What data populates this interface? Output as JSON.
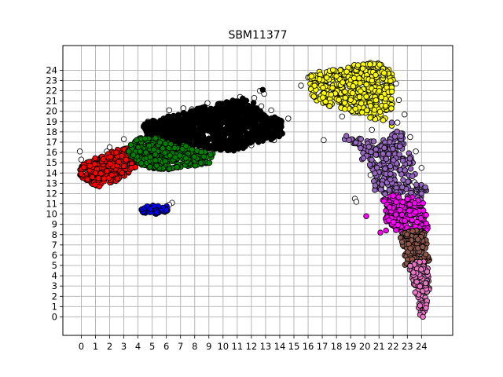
{
  "chart_data": {
    "type": "scatter",
    "title": "SBM11377",
    "xlabel": "",
    "ylabel": "",
    "xlim": [
      -1.3,
      26.2
    ],
    "ylim": [
      -1.8,
      26.4
    ],
    "xticks": [
      0,
      1,
      2,
      3,
      4,
      5,
      6,
      7,
      8,
      9,
      10,
      11,
      12,
      13,
      14,
      15,
      16,
      17,
      18,
      19,
      20,
      21,
      22,
      23,
      24
    ],
    "yticks": [
      0,
      1,
      2,
      3,
      4,
      5,
      6,
      7,
      8,
      9,
      10,
      11,
      12,
      13,
      14,
      15,
      16,
      17,
      18,
      19,
      20,
      21,
      22,
      23,
      24
    ],
    "grid": true,
    "legend": "none",
    "marker_edge_color": "#000000",
    "clusters": [
      {
        "color": "#ffffff",
        "points": [
          [
            -0.1,
            16.1
          ],
          [
            4.7,
            19
          ],
          [
            6.2,
            20.1
          ],
          [
            7.2,
            20.3
          ],
          [
            7.8,
            20.2
          ],
          [
            8.9,
            20.8
          ],
          [
            11.2,
            21.4
          ],
          [
            12.2,
            21.3
          ],
          [
            12.6,
            22
          ],
          [
            12.9,
            21.7
          ],
          [
            12.7,
            20.5
          ],
          [
            13.4,
            20.1
          ],
          [
            14.1,
            18.8
          ],
          [
            14.6,
            19.3
          ],
          [
            13.6,
            17.2
          ],
          [
            13.2,
            17.8
          ],
          [
            12,
            16.7
          ],
          [
            2,
            16.5
          ],
          [
            3,
            17.3
          ],
          [
            15.5,
            22.5
          ],
          [
            16,
            23.3
          ],
          [
            16.3,
            22.1
          ],
          [
            16.4,
            21.6
          ],
          [
            16.8,
            22.4
          ],
          [
            17.1,
            17.2
          ],
          [
            19,
            24.1
          ],
          [
            20.5,
            18.2
          ],
          [
            22.2,
            22.7
          ],
          [
            22.4,
            21.1
          ],
          [
            22.8,
            19.7
          ],
          [
            23.2,
            17.5
          ],
          [
            23.6,
            16.1
          ],
          [
            24,
            14.5
          ],
          [
            23.5,
            13.1
          ],
          [
            23.2,
            9.1
          ],
          [
            19.3,
            11.5
          ],
          [
            19.4,
            11.2
          ],
          [
            20.4,
            13.8
          ],
          [
            21.6,
            22.8
          ],
          [
            6.4,
            11.1
          ],
          [
            6.2,
            10.9
          ],
          [
            5.6,
            10.3
          ],
          [
            4.3,
            10.3
          ],
          [
            0,
            15.3
          ],
          [
            1.8,
            16.1
          ],
          [
            18.7,
            20.5
          ],
          [
            18.4,
            19.5
          ],
          [
            21,
            16.2
          ],
          [
            22.3,
            18.9
          ]
        ]
      },
      {
        "color": "#000000",
        "regions": [
          {
            "poly": [
              [
                4.3,
                18.8
              ],
              [
                6,
                19.5
              ],
              [
                7.5,
                20
              ],
              [
                9,
                20.6
              ],
              [
                10.5,
                21
              ],
              [
                11.5,
                21.3
              ],
              [
                12.3,
                20.8
              ],
              [
                12.4,
                20.3
              ],
              [
                13.2,
                19.5
              ],
              [
                14.1,
                19.4
              ],
              [
                14.2,
                17.8
              ],
              [
                13.7,
                17.3
              ],
              [
                12.6,
                17
              ],
              [
                11.7,
                16.7
              ],
              [
                11.2,
                16.2
              ],
              [
                9.8,
                16.1
              ],
              [
                8.9,
                16.4
              ],
              [
                7.5,
                16.8
              ],
              [
                6.5,
                16.7
              ],
              [
                5.5,
                17.2
              ],
              [
                4.6,
                17.6
              ]
            ],
            "n": 950
          }
        ],
        "points": [
          [
            12.8,
            22.1
          ]
        ]
      },
      {
        "color": "#ff0000",
        "regions": [
          {
            "poly": [
              [
                -0.1,
                14.8
              ],
              [
                0.9,
                15.4
              ],
              [
                2,
                16
              ],
              [
                3,
                16.5
              ],
              [
                4,
                16.3
              ],
              [
                4.2,
                15.4
              ],
              [
                3.9,
                14.6
              ],
              [
                3.3,
                13.8
              ],
              [
                2.3,
                13.1
              ],
              [
                1.2,
                12.6
              ],
              [
                0.4,
                12.9
              ],
              [
                -0.1,
                13.8
              ]
            ],
            "n": 300
          }
        ]
      },
      {
        "color": "#008000",
        "regions": [
          {
            "poly": [
              [
                3.3,
                16.6
              ],
              [
                4.1,
                17.4
              ],
              [
                5.3,
                17.5
              ],
              [
                6.3,
                16.9
              ],
              [
                7.2,
                16.8
              ],
              [
                8.2,
                16.2
              ],
              [
                9.3,
                15.9
              ],
              [
                9.1,
                15
              ],
              [
                8.1,
                14.7
              ],
              [
                6.9,
                14.4
              ],
              [
                5.5,
                14.3
              ],
              [
                4.3,
                14.6
              ],
              [
                3.8,
                15.3
              ],
              [
                3.2,
                15.9
              ]
            ],
            "n": 340
          }
        ]
      },
      {
        "color": "#0000ff",
        "regions": [
          {
            "poly": [
              [
                4.1,
                10.5
              ],
              [
                4.6,
                10.9
              ],
              [
                5.5,
                11
              ],
              [
                6.2,
                10.7
              ],
              [
                6.1,
                10.2
              ],
              [
                5.2,
                10
              ],
              [
                4.4,
                10.1
              ]
            ],
            "n": 45
          }
        ]
      },
      {
        "color": "#ffff00",
        "regions": [
          {
            "poly": [
              [
                16.1,
                23.6
              ],
              [
                17,
                24
              ],
              [
                18.4,
                24.2
              ],
              [
                19.7,
                24.7
              ],
              [
                20.8,
                24.9
              ],
              [
                21.8,
                24.3
              ],
              [
                22,
                23.3
              ],
              [
                21.9,
                22
              ],
              [
                22,
                20.4
              ],
              [
                21.6,
                19.7
              ],
              [
                21.3,
                19
              ],
              [
                20.4,
                19.3
              ],
              [
                19.5,
                19.6
              ],
              [
                18.7,
                20.2
              ],
              [
                17.9,
                20.4
              ],
              [
                16.9,
                20.6
              ],
              [
                16.3,
                21.5
              ],
              [
                16.1,
                22.7
              ]
            ],
            "n": 480
          }
        ],
        "points": [
          [
            18.6,
            21.9
          ],
          [
            21.9,
            18.6
          ]
        ]
      },
      {
        "color": "#9467bd",
        "regions": [
          {
            "poly": [
              [
                18.5,
                17.3
              ],
              [
                19.5,
                17.4
              ],
              [
                20.6,
                17.1
              ],
              [
                21.4,
                17.3
              ],
              [
                22.3,
                18.2
              ],
              [
                22.7,
                17.9
              ],
              [
                22.8,
                16.4
              ],
              [
                23.4,
                15.5
              ],
              [
                23.6,
                13.9
              ],
              [
                24.4,
                12.4
              ],
              [
                23.9,
                11.3
              ],
              [
                22.6,
                11.6
              ],
              [
                21.5,
                11.9
              ],
              [
                20.7,
                12.3
              ],
              [
                20.5,
                13.7
              ],
              [
                20.2,
                14.9
              ],
              [
                19.8,
                15.3
              ],
              [
                19.7,
                16.3
              ]
            ],
            "n": 260
          }
        ],
        "points": [
          [
            18.7,
            17.6
          ],
          [
            21.9,
            18.9
          ]
        ]
      },
      {
        "color": "#ff00ff",
        "regions": [
          {
            "poly": [
              [
                21.2,
                11.4
              ],
              [
                21.9,
                11.9
              ],
              [
                23.4,
                11.8
              ],
              [
                24.1,
                11.1
              ],
              [
                24.4,
                9.9
              ],
              [
                24.7,
                8.9
              ],
              [
                24.2,
                8.2
              ],
              [
                23.1,
                8.1
              ],
              [
                22.1,
                8.4
              ],
              [
                21.6,
                9
              ],
              [
                21.3,
                9.8
              ],
              [
                21.5,
                10.6
              ]
            ],
            "n": 200
          }
        ],
        "points": [
          [
            20.1,
            9.8
          ],
          [
            21.5,
            8.4
          ],
          [
            21.1,
            8.2
          ]
        ]
      },
      {
        "color": "#8c564b",
        "regions": [
          {
            "poly": [
              [
                22.3,
                8.2
              ],
              [
                23.6,
                8.5
              ],
              [
                24.2,
                8.3
              ],
              [
                24.4,
                7.2
              ],
              [
                24.6,
                6
              ],
              [
                24.5,
                5.2
              ],
              [
                23.8,
                4.6
              ],
              [
                23.3,
                4.3
              ],
              [
                22.8,
                5.1
              ],
              [
                22.8,
                6.3
              ],
              [
                22.5,
                7.3
              ]
            ],
            "n": 150
          }
        ]
      },
      {
        "color": "#e377c2",
        "regions": [
          {
            "poly": [
              [
                23,
                5.1
              ],
              [
                23.6,
                5.4
              ],
              [
                24.3,
                5.5
              ],
              [
                24.5,
                4.4
              ],
              [
                24.6,
                3.3
              ],
              [
                24.5,
                2.3
              ],
              [
                24.4,
                1.3
              ],
              [
                24.3,
                0.4
              ],
              [
                24,
                0.1
              ],
              [
                23.8,
                0.8
              ],
              [
                23.6,
                1.8
              ],
              [
                23.5,
                2.9
              ],
              [
                23.3,
                3.8
              ],
              [
                23,
                4.5
              ]
            ],
            "n": 140
          }
        ],
        "points": [
          [
            23.9,
            0.2
          ],
          [
            24.1,
            0
          ]
        ]
      }
    ]
  }
}
